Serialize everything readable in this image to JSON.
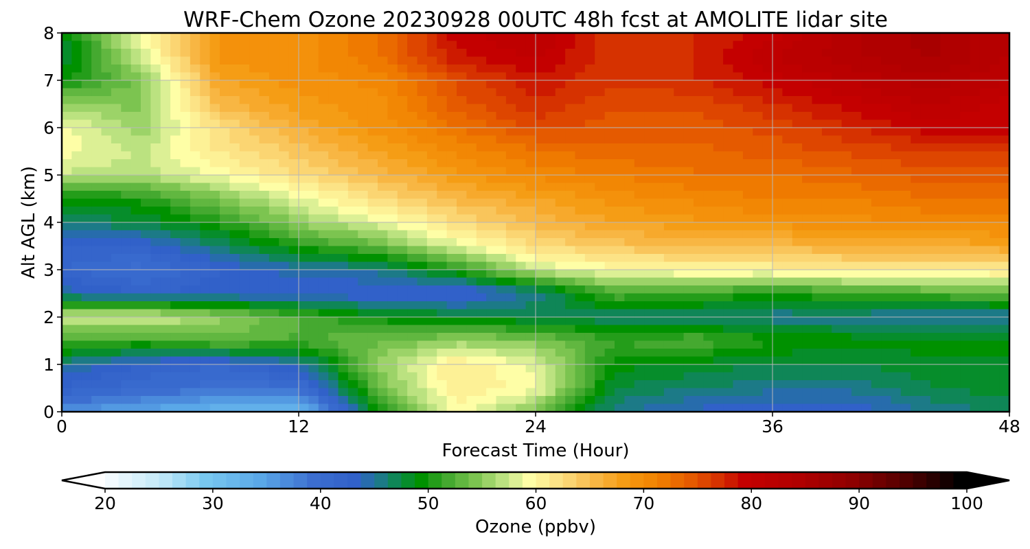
{
  "chart_data": {
    "type": "heatmap",
    "title": "WRF-Chem Ozone  20230928 00UTC 48h fcst at AMOLITE lidar site",
    "xlabel": "Forecast Time (Hour)",
    "ylabel": "Alt AGL (km)",
    "xlim": [
      0,
      48
    ],
    "ylim": [
      0,
      8
    ],
    "x_ticks": [
      0,
      12,
      24,
      36,
      48
    ],
    "y_ticks": [
      0,
      1,
      2,
      3,
      4,
      5,
      6,
      7,
      8
    ],
    "grid": true,
    "x": [
      0,
      4,
      8,
      12,
      16,
      20,
      24,
      28,
      32,
      36,
      40,
      44,
      48
    ],
    "y": [
      0,
      0.5,
      1,
      1.5,
      2,
      2.5,
      3,
      3.5,
      4,
      4.5,
      5,
      5.5,
      6,
      6.5,
      7,
      7.5,
      8
    ],
    "z": [
      [
        37,
        35,
        33,
        32,
        50,
        60,
        55,
        46,
        44,
        43,
        43,
        46,
        47
      ],
      [
        43,
        41,
        40,
        40,
        54,
        62,
        60,
        48,
        47,
        46,
        46,
        48,
        49
      ],
      [
        46,
        43,
        42,
        45,
        56,
        62,
        59,
        50,
        49,
        48,
        48,
        49,
        49
      ],
      [
        53,
        52,
        54,
        53,
        54,
        56,
        55,
        52,
        53,
        51,
        50,
        50,
        50
      ],
      [
        58,
        59,
        56,
        53,
        50,
        49,
        48,
        47,
        47,
        46,
        46,
        45,
        45
      ],
      [
        45,
        43,
        44,
        43,
        43,
        42,
        46,
        53,
        52,
        51,
        52,
        53,
        54
      ],
      [
        42,
        40,
        43,
        45,
        46,
        51,
        58,
        60,
        61,
        61,
        62,
        62,
        62
      ],
      [
        43,
        43,
        47,
        51,
        54,
        59,
        63,
        65,
        66,
        66,
        67,
        67,
        68
      ],
      [
        47,
        48,
        51,
        56,
        59,
        63,
        66,
        68,
        69,
        70,
        70,
        71,
        71
      ],
      [
        50,
        51,
        55,
        59,
        63,
        66,
        68,
        70,
        71,
        72,
        72,
        73,
        73
      ],
      [
        58,
        57,
        60,
        63,
        66,
        69,
        71,
        72,
        73,
        73,
        74,
        75,
        75
      ],
      [
        60,
        58,
        62,
        65,
        68,
        71,
        73,
        74,
        74,
        75,
        76,
        77,
        77
      ],
      [
        60,
        56,
        63,
        67,
        70,
        73,
        76,
        75,
        75,
        76,
        78,
        80,
        80
      ],
      [
        56,
        55,
        66,
        69,
        70,
        75,
        78,
        76,
        76,
        78,
        80,
        82,
        80
      ],
      [
        50,
        55,
        68,
        70,
        71,
        76,
        79,
        77,
        78,
        80,
        82,
        84,
        82
      ],
      [
        48,
        58,
        70,
        70,
        73,
        79,
        81,
        77,
        78,
        82,
        84,
        86,
        83
      ],
      [
        49,
        60,
        70,
        70,
        73,
        80,
        82,
        77,
        78,
        80,
        84,
        86,
        83
      ]
    ],
    "colorbar": {
      "label": "Ozone  (ppbv)",
      "min": 20,
      "max": 100,
      "extend": "both",
      "ticks": [
        20,
        30,
        40,
        50,
        60,
        70,
        80,
        90,
        100
      ],
      "stops": [
        {
          "v": 20,
          "c": "#ffffff"
        },
        {
          "v": 26,
          "c": "#bfe8f8"
        },
        {
          "v": 30,
          "c": "#78c8f0"
        },
        {
          "v": 35,
          "c": "#5aa8e8"
        },
        {
          "v": 40,
          "c": "#3c6ed0"
        },
        {
          "v": 44,
          "c": "#3060c8"
        },
        {
          "v": 46,
          "c": "#1e7890"
        },
        {
          "v": 48,
          "c": "#0a8a44"
        },
        {
          "v": 50,
          "c": "#009100"
        },
        {
          "v": 52,
          "c": "#3aa42a"
        },
        {
          "v": 55,
          "c": "#7cc450"
        },
        {
          "v": 58,
          "c": "#c8e88a"
        },
        {
          "v": 60,
          "c": "#fefea6"
        },
        {
          "v": 63,
          "c": "#fcde80"
        },
        {
          "v": 66,
          "c": "#f8b848"
        },
        {
          "v": 69,
          "c": "#f59a10"
        },
        {
          "v": 72,
          "c": "#f18000"
        },
        {
          "v": 75,
          "c": "#e55a00"
        },
        {
          "v": 78,
          "c": "#d32a00"
        },
        {
          "v": 80,
          "c": "#c40000"
        },
        {
          "v": 85,
          "c": "#b00000"
        },
        {
          "v": 90,
          "c": "#8e0000"
        },
        {
          "v": 95,
          "c": "#500000"
        },
        {
          "v": 100,
          "c": "#000000"
        }
      ]
    }
  }
}
